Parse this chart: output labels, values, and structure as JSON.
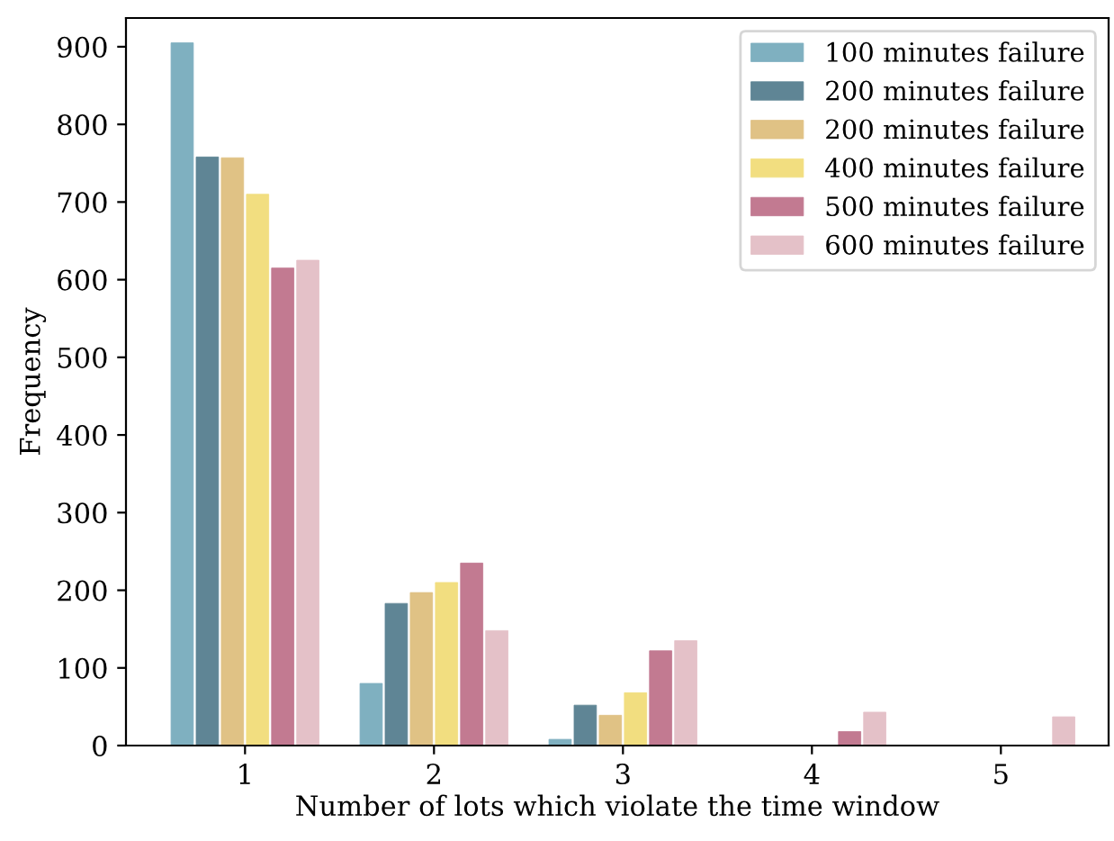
{
  "chart_data": {
    "type": "bar",
    "xlabel": "Number of lots which violate the time window",
    "ylabel": "Frequency",
    "categories": [
      "1",
      "2",
      "3",
      "4",
      "5"
    ],
    "series": [
      {
        "name": "100 minutes failure",
        "color": "#7fb0c0",
        "values": [
          905,
          80,
          8,
          null,
          null
        ]
      },
      {
        "name": "200 minutes failure",
        "color": "#5f8595",
        "values": [
          758,
          183,
          52,
          null,
          null
        ]
      },
      {
        "name": "200 minutes failure",
        "color": "#e0c285",
        "values": [
          757,
          197,
          39,
          null,
          null
        ]
      },
      {
        "name": "400 minutes failure",
        "color": "#f2de80",
        "values": [
          710,
          210,
          68,
          null,
          null
        ]
      },
      {
        "name": "500 minutes failure",
        "color": "#c27a91",
        "values": [
          615,
          235,
          122,
          18,
          null
        ]
      },
      {
        "name": "600 minutes failure",
        "color": "#e4c1c8",
        "values": [
          625,
          148,
          135,
          43,
          37
        ]
      }
    ],
    "ylim": [
      0,
      937
    ],
    "yticks": [
      0,
      100,
      200,
      300,
      400,
      500,
      600,
      700,
      800,
      900
    ],
    "legend": "top right",
    "grid": false
  }
}
